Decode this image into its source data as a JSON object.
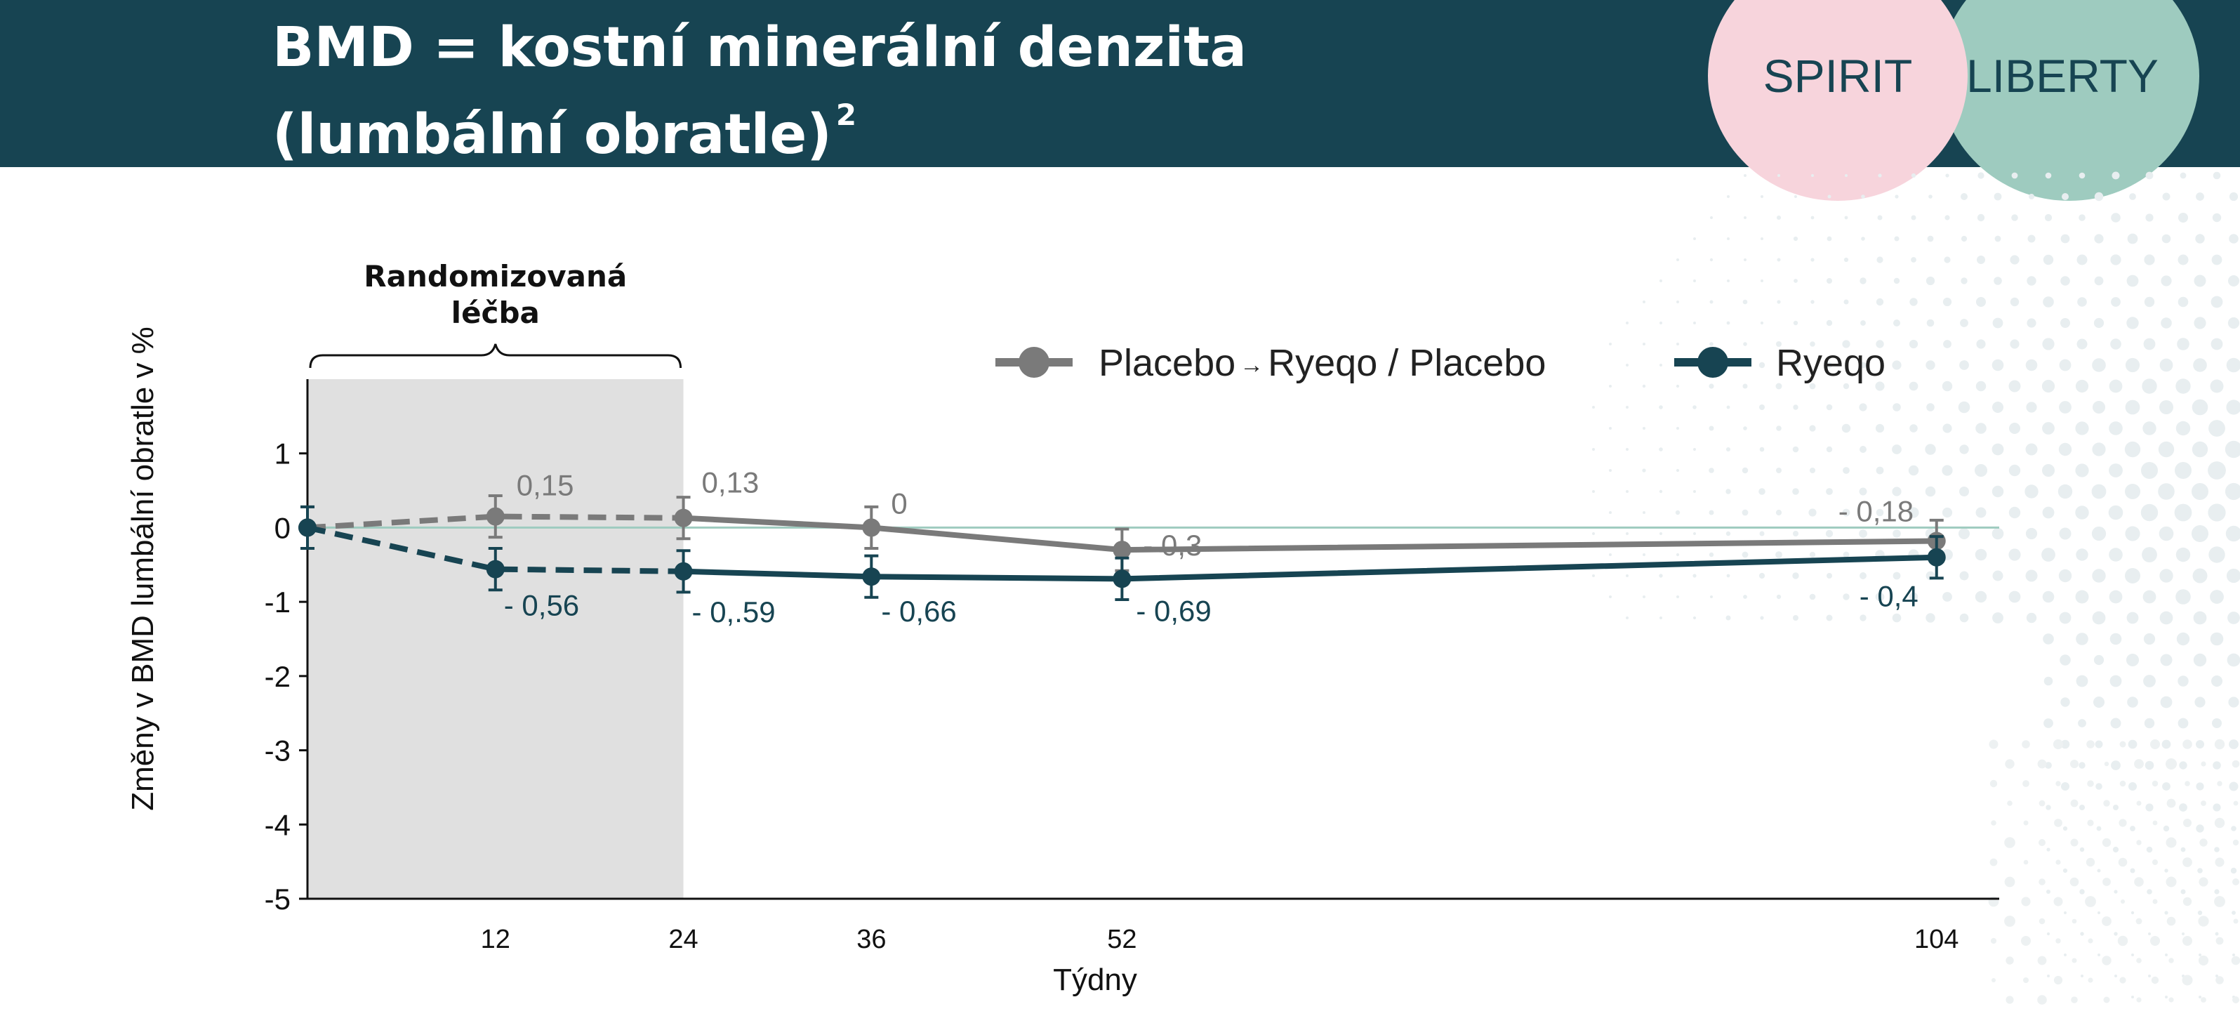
{
  "header": {
    "title_line1": "BMD = kostní minerální denzita",
    "title_line2": "(lumbální obratle)",
    "title_sup": "2",
    "badge_spirit": "SPIRIT",
    "badge_liberty": "LIBERTY"
  },
  "colors": {
    "header_bg": "#174452",
    "spirit": "#f7d4dc",
    "liberty": "#9ecbbf",
    "placebo": "#7a7a7a",
    "ryeqo": "#174452",
    "zero_line": "#9ecbbf",
    "shade": "#e0e0e0"
  },
  "chart_data": {
    "type": "line",
    "xlabel": "Týdny",
    "ylabel": "Změny v BMD lumbální obratle v %",
    "ylim": [
      -5,
      2
    ],
    "yticks": [
      1,
      0,
      -1,
      -2,
      -3,
      -4,
      -5
    ],
    "xticks": [
      12,
      24,
      36,
      52,
      104
    ],
    "xlim": [
      0,
      108
    ],
    "shaded_region": {
      "x_from": 0,
      "x_to": 24,
      "label": "Randomizovaná léčba"
    },
    "legend": {
      "placebo_parts": [
        "Placebo",
        "→",
        "Ryeqo / Placebo"
      ],
      "ryeqo": "Ryeqo",
      "position": "top-right"
    },
    "series": [
      {
        "name": "Placebo → Ryeqo / Placebo",
        "color": "#7a7a7a",
        "x": [
          0,
          12,
          24,
          36,
          52,
          104
        ],
        "y": [
          0,
          0.15,
          0.13,
          0,
          -0.3,
          -0.18
        ],
        "err": [
          0.28,
          0.28,
          0.28,
          0.28,
          0.28,
          0.28
        ],
        "labels": [
          "",
          "0,15",
          "0,13",
          "0",
          "- 0,3",
          "-  0,18"
        ]
      },
      {
        "name": "Ryeqo",
        "color": "#174452",
        "x": [
          0,
          12,
          24,
          36,
          52,
          104
        ],
        "y": [
          0,
          -0.56,
          -0.59,
          -0.66,
          -0.69,
          -0.4
        ],
        "err": [
          0.28,
          0.28,
          0.28,
          0.28,
          0.28,
          0.28
        ],
        "labels": [
          "",
          "- 0,56",
          "- 0,.59",
          "- 0,66",
          "- 0,69",
          "- 0,4"
        ]
      }
    ],
    "dashed_until_x": 24,
    "zero_line": true
  }
}
